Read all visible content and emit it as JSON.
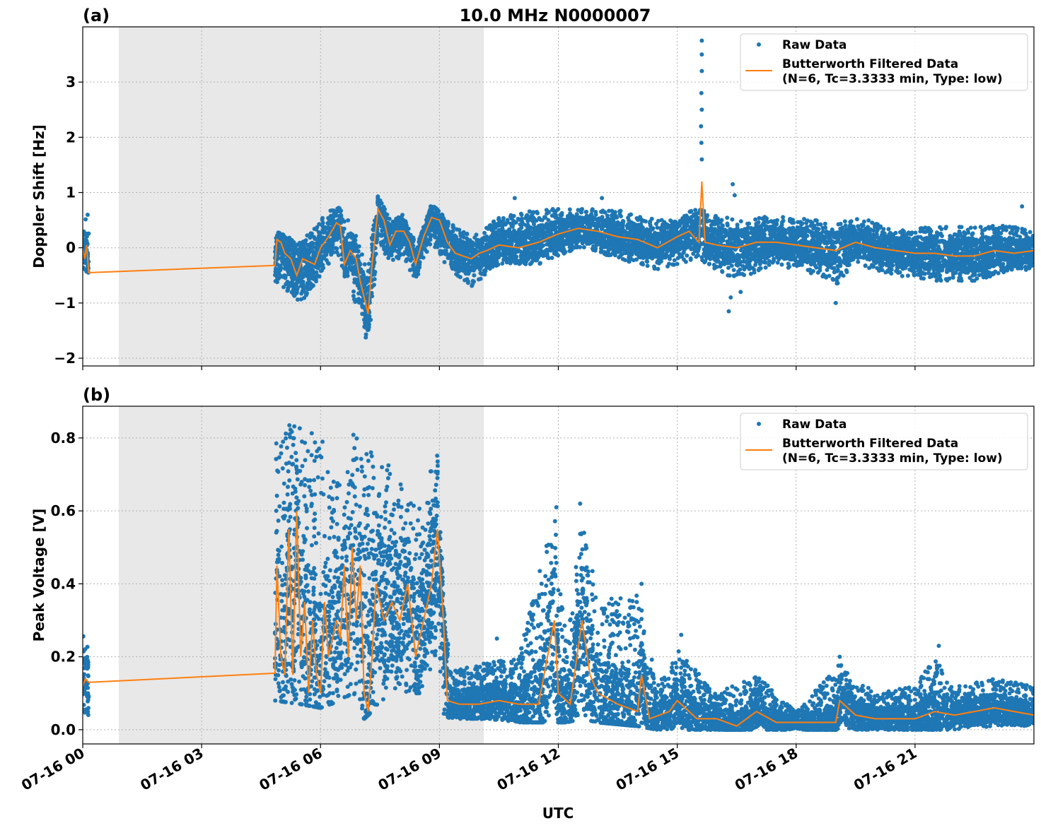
{
  "title": "10.0 MHz N0000007",
  "xlabel": "UTC",
  "x_ticks": [
    "07-16 00",
    "07-16 03",
    "07-16 06",
    "07-16 09",
    "07-16 12",
    "07-16 15",
    "07-16 18",
    "07-16 21"
  ],
  "x_tick_hours": [
    0,
    3,
    6,
    9,
    12,
    15,
    18,
    21
  ],
  "xlim_hours": [
    0,
    24
  ],
  "shaded_region_hours": [
    0.91,
    10.12
  ],
  "colors": {
    "raw": "#1f77b4",
    "filtered": "#ff7f0e",
    "shade": "#e8e8e8",
    "grid": "#b0b0b0"
  },
  "legend": {
    "raw": "Raw Data",
    "filtered_line1": "Butterworth Filtered Data",
    "filtered_line2": "(N=6, Tc=3.3333 min, Type: low)",
    "placement": "upper right"
  },
  "chart_data": [
    {
      "type": "scatter+line",
      "panel_label": "(a)",
      "ylabel": "Doppler Shift [Hz]",
      "ylim": [
        -2.14,
        4.0
      ],
      "y_ticks": [
        -2,
        -1,
        0,
        1,
        2,
        3
      ],
      "y_tick_labels": [
        "−2",
        "−1",
        "0",
        "1",
        "2",
        "3"
      ],
      "grid": true,
      "filtered": [
        [
          0,
          0.0
        ],
        [
          0.05,
          -0.2
        ],
        [
          0.1,
          0.05
        ],
        [
          0.15,
          -0.45
        ],
        [
          4.85,
          -0.32
        ],
        [
          4.9,
          0.15
        ],
        [
          5.0,
          0.1
        ],
        [
          5.1,
          -0.1
        ],
        [
          5.25,
          -0.2
        ],
        [
          5.4,
          -0.5
        ],
        [
          5.55,
          -0.2
        ],
        [
          5.7,
          -0.25
        ],
        [
          5.85,
          -0.3
        ],
        [
          6.0,
          0.0
        ],
        [
          6.2,
          0.2
        ],
        [
          6.4,
          0.45
        ],
        [
          6.5,
          0.4
        ],
        [
          6.6,
          -0.3
        ],
        [
          6.75,
          -0.05
        ],
        [
          6.9,
          -0.2
        ],
        [
          7.0,
          -0.6
        ],
        [
          7.1,
          -0.9
        ],
        [
          7.2,
          -1.2
        ],
        [
          7.3,
          -0.3
        ],
        [
          7.45,
          0.7
        ],
        [
          7.6,
          0.5
        ],
        [
          7.75,
          0.05
        ],
        [
          7.9,
          0.3
        ],
        [
          8.1,
          0.3
        ],
        [
          8.25,
          0.1
        ],
        [
          8.4,
          -0.3
        ],
        [
          8.6,
          0.2
        ],
        [
          8.8,
          0.55
        ],
        [
          9.0,
          0.5
        ],
        [
          9.2,
          0.1
        ],
        [
          9.4,
          -0.1
        ],
        [
          9.6,
          -0.15
        ],
        [
          9.8,
          -0.2
        ],
        [
          10.0,
          -0.1
        ],
        [
          10.2,
          -0.05
        ],
        [
          10.5,
          0.05
        ],
        [
          11.0,
          0.0
        ],
        [
          11.5,
          0.1
        ],
        [
          12.0,
          0.25
        ],
        [
          12.5,
          0.35
        ],
        [
          13.0,
          0.3
        ],
        [
          13.5,
          0.2
        ],
        [
          14.0,
          0.15
        ],
        [
          14.5,
          0.0
        ],
        [
          15.0,
          0.2
        ],
        [
          15.3,
          0.3
        ],
        [
          15.55,
          0.1
        ],
        [
          15.62,
          1.2
        ],
        [
          15.7,
          0.1
        ],
        [
          16.0,
          0.05
        ],
        [
          16.5,
          0.0
        ],
        [
          17.0,
          0.1
        ],
        [
          17.5,
          0.1
        ],
        [
          18.0,
          0.05
        ],
        [
          18.5,
          0.0
        ],
        [
          19.0,
          -0.05
        ],
        [
          19.5,
          0.1
        ],
        [
          20.0,
          0.0
        ],
        [
          20.5,
          -0.05
        ],
        [
          21.0,
          -0.1
        ],
        [
          21.5,
          -0.1
        ],
        [
          22.0,
          -0.15
        ],
        [
          22.5,
          -0.15
        ],
        [
          23.0,
          -0.05
        ],
        [
          23.5,
          -0.1
        ],
        [
          24.0,
          -0.05
        ]
      ],
      "raw_range": [
        [
          0,
          -0.45,
          0.6
        ],
        [
          0.15,
          -0.45,
          0.6
        ],
        [
          4.85,
          -0.6,
          0.3
        ],
        [
          5.5,
          -1.0,
          0.1
        ],
        [
          6.0,
          -0.5,
          0.5
        ],
        [
          6.4,
          -0.1,
          0.8
        ],
        [
          6.7,
          -0.7,
          0.5
        ],
        [
          7.0,
          -1.2,
          0.1
        ],
        [
          7.2,
          -1.85,
          -0.4
        ],
        [
          7.35,
          -0.7,
          0.6
        ],
        [
          7.45,
          0.2,
          0.95
        ],
        [
          7.7,
          -0.3,
          0.6
        ],
        [
          8.1,
          -0.2,
          0.6
        ],
        [
          8.4,
          -0.6,
          0.1
        ],
        [
          8.8,
          0.1,
          0.8
        ],
        [
          9.2,
          -0.4,
          0.5
        ],
        [
          9.8,
          -0.7,
          0.2
        ],
        [
          10.5,
          -0.3,
          0.55
        ],
        [
          11.5,
          -0.3,
          0.7
        ],
        [
          12.5,
          0.0,
          0.7
        ],
        [
          13.5,
          -0.2,
          0.7
        ],
        [
          14.5,
          -0.4,
          0.5
        ],
        [
          15.5,
          -0.2,
          0.7
        ],
        [
          16.0,
          -0.4,
          0.6
        ],
        [
          16.5,
          -0.6,
          0.5
        ],
        [
          17.5,
          -0.3,
          0.6
        ],
        [
          18.5,
          -0.5,
          0.5
        ],
        [
          19.0,
          -0.7,
          0.4
        ],
        [
          19.5,
          -0.3,
          0.6
        ],
        [
          20.5,
          -0.5,
          0.3
        ],
        [
          21.5,
          -0.6,
          0.4
        ],
        [
          22.5,
          -0.6,
          0.4
        ],
        [
          23.5,
          -0.4,
          0.4
        ],
        [
          24.0,
          -0.4,
          0.3
        ]
      ],
      "outliers": [
        [
          15.62,
          3.75
        ],
        [
          15.62,
          3.5
        ],
        [
          15.62,
          3.2
        ],
        [
          15.61,
          2.8
        ],
        [
          15.62,
          2.5
        ],
        [
          15.6,
          2.2
        ],
        [
          15.61,
          1.9
        ],
        [
          15.62,
          1.6
        ],
        [
          16.4,
          1.15
        ],
        [
          16.45,
          0.95
        ],
        [
          16.3,
          -1.15
        ],
        [
          16.35,
          -0.9
        ],
        [
          16.6,
          -0.8
        ],
        [
          19.0,
          -1.0
        ],
        [
          23.7,
          0.75
        ],
        [
          10.9,
          0.9
        ],
        [
          13.1,
          0.9
        ]
      ]
    },
    {
      "type": "scatter+line",
      "panel_label": "(b)",
      "ylabel": "Peak Voltage [V]",
      "ylim": [
        -0.039,
        0.887
      ],
      "y_ticks": [
        0.0,
        0.2,
        0.4,
        0.6,
        0.8
      ],
      "y_tick_labels": [
        "0.0",
        "0.2",
        "0.4",
        "0.6",
        "0.8"
      ],
      "grid": true,
      "filtered": [
        [
          0,
          0.12
        ],
        [
          0.07,
          0.14
        ],
        [
          0.15,
          0.13
        ],
        [
          4.85,
          0.155
        ],
        [
          4.9,
          0.45
        ],
        [
          5.0,
          0.2
        ],
        [
          5.1,
          0.15
        ],
        [
          5.2,
          0.55
        ],
        [
          5.3,
          0.15
        ],
        [
          5.4,
          0.6
        ],
        [
          5.5,
          0.2
        ],
        [
          5.6,
          0.35
        ],
        [
          5.7,
          0.1
        ],
        [
          5.8,
          0.3
        ],
        [
          5.9,
          0.15
        ],
        [
          6.0,
          0.1
        ],
        [
          6.1,
          0.35
        ],
        [
          6.2,
          0.2
        ],
        [
          6.4,
          0.3
        ],
        [
          6.5,
          0.25
        ],
        [
          6.6,
          0.45
        ],
        [
          6.7,
          0.2
        ],
        [
          6.8,
          0.5
        ],
        [
          6.9,
          0.3
        ],
        [
          7.0,
          0.45
        ],
        [
          7.1,
          0.1
        ],
        [
          7.2,
          0.05
        ],
        [
          7.3,
          0.2
        ],
        [
          7.4,
          0.4
        ],
        [
          7.6,
          0.3
        ],
        [
          7.8,
          0.35
        ],
        [
          8.0,
          0.3
        ],
        [
          8.2,
          0.4
        ],
        [
          8.4,
          0.2
        ],
        [
          8.6,
          0.3
        ],
        [
          8.8,
          0.4
        ],
        [
          8.95,
          0.55
        ],
        [
          9.1,
          0.3
        ],
        [
          9.2,
          0.08
        ],
        [
          9.5,
          0.07
        ],
        [
          10.0,
          0.07
        ],
        [
          10.5,
          0.08
        ],
        [
          11.0,
          0.07
        ],
        [
          11.5,
          0.07
        ],
        [
          11.9,
          0.3
        ],
        [
          12.0,
          0.1
        ],
        [
          12.3,
          0.07
        ],
        [
          12.6,
          0.3
        ],
        [
          12.8,
          0.15
        ],
        [
          13.0,
          0.1
        ],
        [
          13.5,
          0.07
        ],
        [
          14.0,
          0.05
        ],
        [
          14.1,
          0.15
        ],
        [
          14.3,
          0.03
        ],
        [
          14.8,
          0.05
        ],
        [
          15.0,
          0.08
        ],
        [
          15.5,
          0.03
        ],
        [
          16.0,
          0.03
        ],
        [
          16.5,
          0.01
        ],
        [
          17.0,
          0.05
        ],
        [
          17.5,
          0.02
        ],
        [
          18.0,
          0.02
        ],
        [
          18.5,
          0.02
        ],
        [
          19.0,
          0.02
        ],
        [
          19.1,
          0.08
        ],
        [
          19.5,
          0.04
        ],
        [
          20.0,
          0.03
        ],
        [
          20.5,
          0.03
        ],
        [
          21.0,
          0.03
        ],
        [
          21.5,
          0.05
        ],
        [
          22.0,
          0.04
        ],
        [
          22.5,
          0.05
        ],
        [
          23.0,
          0.06
        ],
        [
          23.5,
          0.05
        ],
        [
          24.0,
          0.04
        ]
      ],
      "raw_range": [
        [
          0,
          0.04,
          0.26
        ],
        [
          0.15,
          0.04,
          0.22
        ],
        [
          4.85,
          0.08,
          0.84
        ],
        [
          5.5,
          0.07,
          0.84
        ],
        [
          6.0,
          0.06,
          0.8
        ],
        [
          6.5,
          0.08,
          0.7
        ],
        [
          6.8,
          0.1,
          0.84
        ],
        [
          7.1,
          0.03,
          0.75
        ],
        [
          7.3,
          0.05,
          0.77
        ],
        [
          8.0,
          0.1,
          0.7
        ],
        [
          8.6,
          0.1,
          0.6
        ],
        [
          8.95,
          0.2,
          0.83
        ],
        [
          9.1,
          0.04,
          0.35
        ],
        [
          9.3,
          0.03,
          0.16
        ],
        [
          10.0,
          0.03,
          0.18
        ],
        [
          11.0,
          0.02,
          0.2
        ],
        [
          11.9,
          0.02,
          0.6
        ],
        [
          12.2,
          0.02,
          0.25
        ],
        [
          12.6,
          0.03,
          0.6
        ],
        [
          13.0,
          0.02,
          0.35
        ],
        [
          14.0,
          0.01,
          0.38
        ],
        [
          14.5,
          0.0,
          0.12
        ],
        [
          15.0,
          0.0,
          0.22
        ],
        [
          16.0,
          0.0,
          0.1
        ],
        [
          17.0,
          0.0,
          0.15
        ],
        [
          18.0,
          0.0,
          0.05
        ],
        [
          19.1,
          0.0,
          0.18
        ],
        [
          20.0,
          0.0,
          0.1
        ],
        [
          21.0,
          0.0,
          0.12
        ],
        [
          21.5,
          0.0,
          0.2
        ],
        [
          22.0,
          0.0,
          0.12
        ],
        [
          23.0,
          0.01,
          0.14
        ],
        [
          24.0,
          0.01,
          0.12
        ]
      ],
      "outliers": [
        [
          11.95,
          0.61
        ],
        [
          12.55,
          0.62
        ],
        [
          12.65,
          0.54
        ],
        [
          14.1,
          0.4
        ],
        [
          15.1,
          0.26
        ],
        [
          10.45,
          0.25
        ],
        [
          21.6,
          0.23
        ],
        [
          19.1,
          0.2
        ]
      ]
    }
  ]
}
